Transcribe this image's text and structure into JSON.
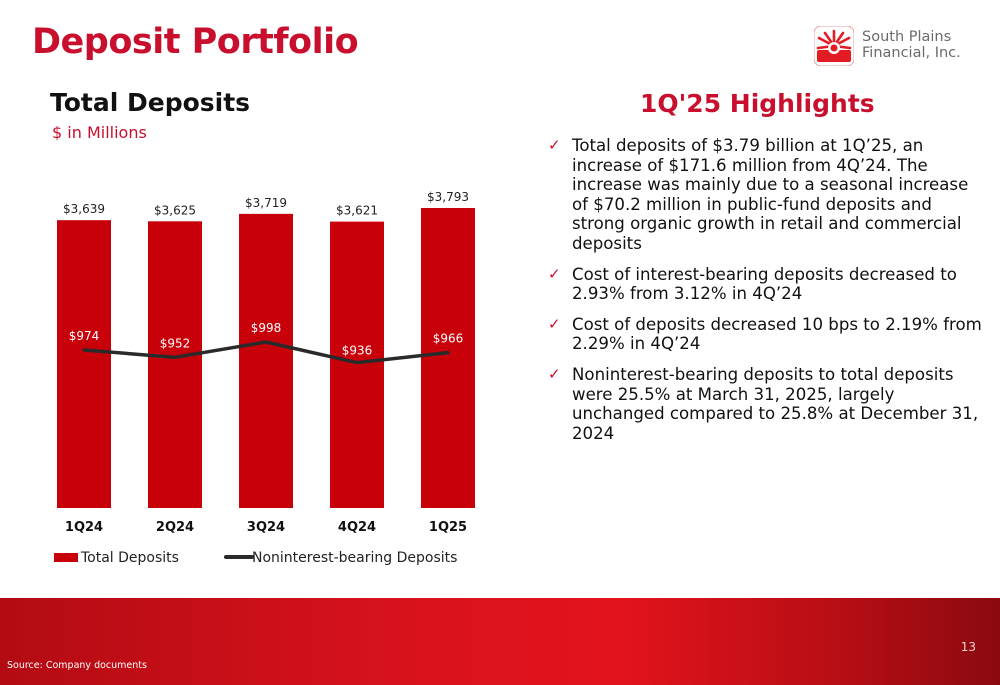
{
  "slide": {
    "title": "Deposit Portfolio",
    "page_number": "13",
    "source": "Source: Company documents"
  },
  "logo": {
    "line1": "South Plains",
    "line2": "Financial, Inc.",
    "icon": "sun-rays-logo-icon"
  },
  "chart_header": {
    "title": "Total Deposits",
    "subtitle": "$ in Millions"
  },
  "highlights": {
    "title": "1Q'25 Highlights",
    "icon": "checkmark-icon",
    "items": [
      "Total deposits of $3.79 billion at 1Q’25, an increase of $171.6 million from 4Q’24. The increase was mainly due to a seasonal increase of $70.2 million in public-fund deposits and strong organic growth in retail and commercial deposits",
      "Cost of interest-bearing deposits decreased to 2.93% from 3.12% in 4Q’24",
      "Cost of deposits decreased 10 bps to 2.19% from 2.29% in 4Q’24",
      "Noninterest-bearing deposits to total deposits were 25.5% at March 31, 2025, largely unchanged compared to 25.8% at December 31, 2024"
    ]
  },
  "colors": {
    "brand_red": "#c8102e",
    "bar_red": "#c8000a",
    "line": "#2a2a2a"
  },
  "chart_data": {
    "type": "bar",
    "categories": [
      "1Q24",
      "2Q24",
      "3Q24",
      "4Q24",
      "1Q25"
    ],
    "series": [
      {
        "name": "Total Deposits",
        "type": "bar",
        "values": [
          3639,
          3625,
          3719,
          3621,
          3793
        ],
        "labels": [
          "$3,639",
          "$3,625",
          "$3,719",
          "$3,621",
          "$3,793"
        ]
      },
      {
        "name": "Noninterest-bearing Deposits",
        "type": "line",
        "values": [
          974,
          952,
          998,
          936,
          966
        ],
        "labels": [
          "$974",
          "$952",
          "$998",
          "$936",
          "$966"
        ]
      }
    ],
    "bar_axis_range": [
      0,
      3793
    ],
    "line_axis_range": [
      500,
      1400
    ],
    "grid": false,
    "legend_position": "bottom"
  }
}
